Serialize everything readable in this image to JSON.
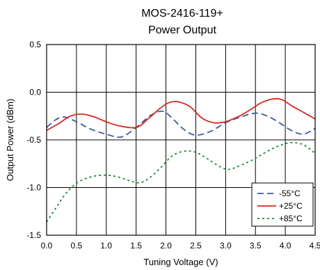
{
  "chart_data": {
    "type": "line",
    "title": "MOS-2416-119+",
    "subtitle": "Power Output",
    "xlabel": "Tuning Voltage (V)",
    "ylabel": "Output Power (dBm)",
    "xlim": [
      0.0,
      4.5
    ],
    "ylim": [
      -1.5,
      0.5
    ],
    "grid": true,
    "legend_position": "bottom-right",
    "x_ticks": [
      "0.0",
      "0.5",
      "1.0",
      "1.5",
      "2.0",
      "2.5",
      "3.0",
      "3.5",
      "4.0",
      "4.5"
    ],
    "y_ticks": [
      "0.5",
      "0.0",
      "-0.5",
      "-1.0",
      "-1.5"
    ],
    "series": [
      {
        "name": "-55°C",
        "color": "#3a58a8",
        "style": "dashed",
        "x": [
          0.0,
          0.15,
          0.3,
          0.5,
          0.75,
          1.0,
          1.25,
          1.5,
          1.75,
          1.95,
          2.1,
          2.3,
          2.5,
          2.75,
          3.0,
          3.25,
          3.5,
          3.7,
          3.9,
          4.1,
          4.3,
          4.5
        ],
        "y": [
          -0.37,
          -0.29,
          -0.26,
          -0.31,
          -0.39,
          -0.44,
          -0.47,
          -0.37,
          -0.24,
          -0.2,
          -0.27,
          -0.39,
          -0.45,
          -0.41,
          -0.32,
          -0.26,
          -0.22,
          -0.25,
          -0.32,
          -0.4,
          -0.44,
          -0.38
        ]
      },
      {
        "name": "+25°C",
        "color": "#e1251b",
        "style": "solid",
        "x": [
          0.0,
          0.2,
          0.4,
          0.6,
          0.8,
          1.0,
          1.2,
          1.5,
          1.7,
          1.9,
          2.05,
          2.2,
          2.4,
          2.6,
          2.8,
          3.0,
          3.2,
          3.4,
          3.6,
          3.8,
          3.95,
          4.1,
          4.3,
          4.5
        ],
        "y": [
          -0.4,
          -0.33,
          -0.25,
          -0.23,
          -0.26,
          -0.31,
          -0.35,
          -0.37,
          -0.28,
          -0.17,
          -0.11,
          -0.1,
          -0.15,
          -0.27,
          -0.32,
          -0.31,
          -0.26,
          -0.19,
          -0.11,
          -0.07,
          -0.08,
          -0.14,
          -0.21,
          -0.28
        ]
      },
      {
        "name": "+85°C",
        "color": "#1e8a3a",
        "style": "dotted",
        "x": [
          0.0,
          0.15,
          0.3,
          0.45,
          0.6,
          0.8,
          1.0,
          1.2,
          1.4,
          1.55,
          1.7,
          1.9,
          2.1,
          2.3,
          2.5,
          2.7,
          2.9,
          3.05,
          3.2,
          3.45,
          3.7,
          3.9,
          4.1,
          4.3,
          4.5
        ],
        "y": [
          -1.36,
          -1.22,
          -1.08,
          -0.98,
          -0.92,
          -0.88,
          -0.87,
          -0.89,
          -0.93,
          -0.95,
          -0.91,
          -0.8,
          -0.67,
          -0.62,
          -0.63,
          -0.7,
          -0.78,
          -0.81,
          -0.78,
          -0.71,
          -0.62,
          -0.56,
          -0.53,
          -0.55,
          -0.64
        ]
      }
    ]
  }
}
